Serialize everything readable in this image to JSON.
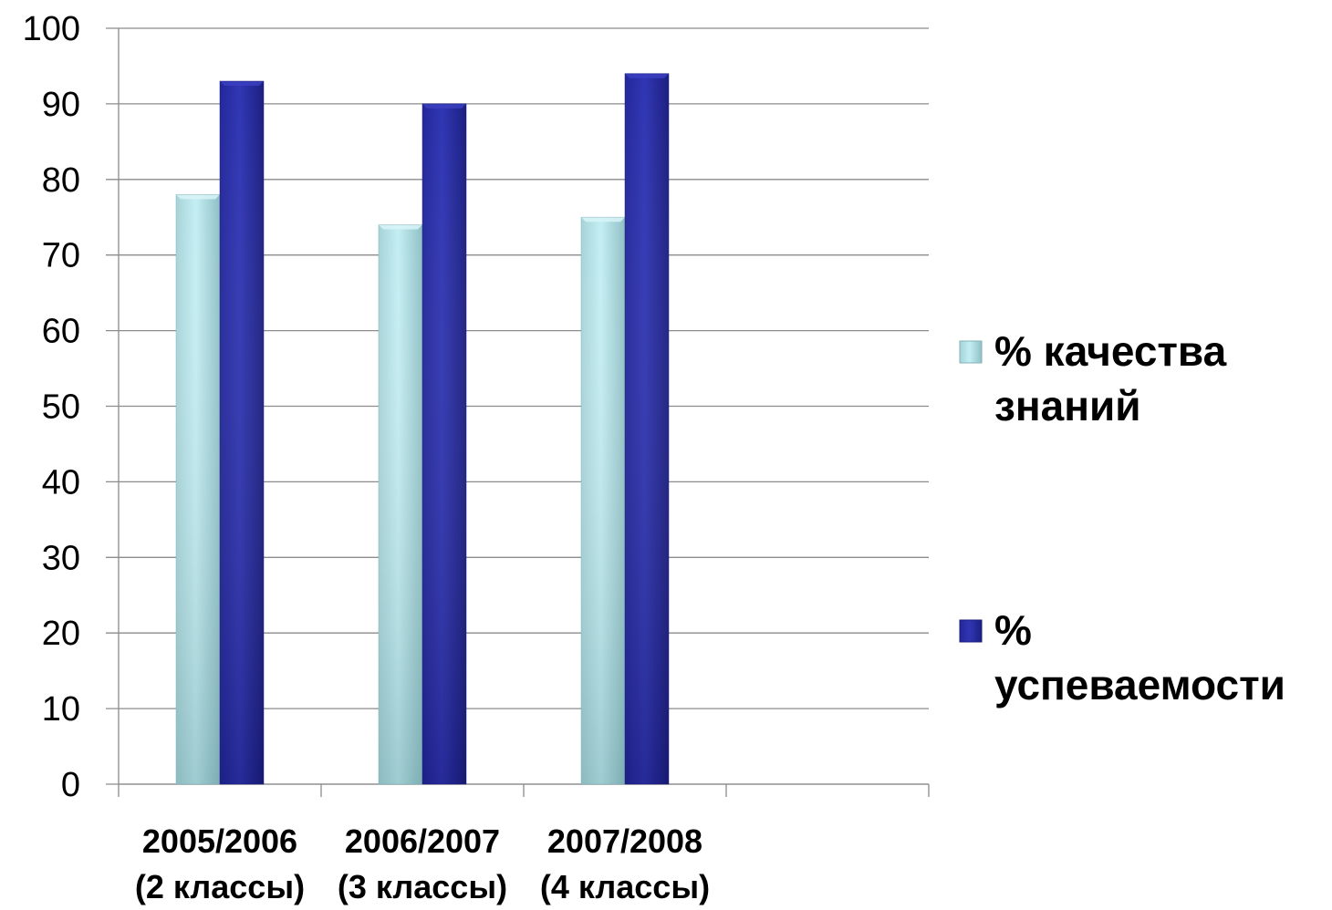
{
  "chart_data": {
    "type": "bar",
    "categories": [
      [
        "2005/2006",
        "(2 классы)"
      ],
      [
        "2006/2007",
        "(3 классы)"
      ],
      [
        "2007/2008",
        "(4 классы)"
      ]
    ],
    "empty_category_slots": 1,
    "series": [
      {
        "name": [
          "% качества",
          "знаний"
        ],
        "values": [
          78,
          74,
          75
        ],
        "color": "#b8e6ec",
        "color_dark": "#7fb3b8"
      },
      {
        "name": [
          "%",
          "успеваемости"
        ],
        "values": [
          93,
          90,
          94
        ],
        "color": "#2b2fa8",
        "color_dark": "#1a1d7a"
      }
    ],
    "ylim": [
      0,
      100
    ],
    "yticks": [
      0,
      10,
      20,
      30,
      40,
      50,
      60,
      70,
      80,
      90,
      100
    ],
    "grid": true,
    "legend_position": "right"
  }
}
